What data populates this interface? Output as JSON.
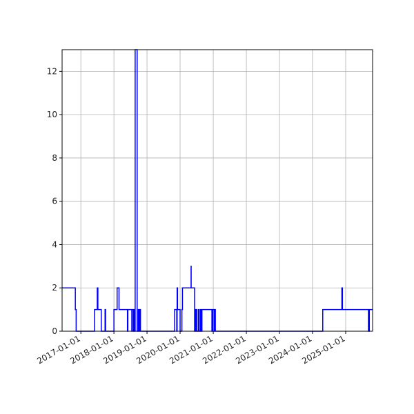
{
  "chart_data": {
    "type": "line",
    "title": "",
    "xlabel": "",
    "ylabel": "",
    "x_axis_type": "date",
    "xlim": [
      "2016-06-08",
      "2025-10-25"
    ],
    "ylim": [
      0,
      13
    ],
    "grid": true,
    "line_style": "steps",
    "colors": {
      "line": "#0000ff",
      "grid": "#b0b0b0",
      "frame": "#000000"
    },
    "y_ticks": [
      0,
      2,
      4,
      6,
      8,
      10,
      12
    ],
    "y_tick_labels": [
      "0",
      "2",
      "4",
      "6",
      "8",
      "10",
      "12"
    ],
    "x_ticks": [
      "2017-01-01",
      "2018-01-01",
      "2019-01-01",
      "2020-01-01",
      "2021-01-01",
      "2022-01-01",
      "2023-01-01",
      "2024-01-01",
      "2025-01-01"
    ],
    "x_tick_labels": [
      "2017-01-01",
      "2018-01-01",
      "2019-01-01",
      "2020-01-01",
      "2021-01-01",
      "2022-01-01",
      "2023-01-01",
      "2024-01-01",
      "2025-01-01"
    ],
    "series": [
      {
        "x": [
          "2016-06-08",
          "2016-11-01",
          "2016-11-10",
          "2017-06-01",
          "2017-07-01",
          "2017-07-08",
          "2017-08-14",
          "2017-09-25",
          "2017-10-01",
          "2018-01-01",
          "2018-02-05",
          "2018-02-26",
          "2018-05-30",
          "2018-06-04",
          "2018-07-17",
          "2018-07-21",
          "2018-08-04",
          "2018-08-07",
          "2018-08-12",
          "2018-08-17",
          "2018-08-20",
          "2018-08-23",
          "2018-09-14",
          "2018-09-27",
          "2018-10-06",
          "2018-10-11",
          "2018-10-21",
          "2018-10-31",
          "2019-11-02",
          "2019-11-25",
          "2019-11-29",
          "2019-12-04",
          "2020-01-01",
          "2020-01-21",
          "2020-01-27",
          "2020-05-01",
          "2020-05-02",
          "2020-06-09",
          "2020-06-10",
          "2020-06-14",
          "2020-06-22",
          "2020-07-04",
          "2020-07-21",
          "2020-07-30",
          "2020-08-14",
          "2020-08-20",
          "2020-08-29",
          "2020-10-06",
          "2020-12-17",
          "2020-12-28",
          "2021-01-12",
          "2021-01-18",
          "2021-01-24",
          "2024-04-23",
          "2024-11-20",
          "2024-11-26",
          "2025-09-09",
          "2025-09-19"
        ],
        "y": [
          2,
          1,
          0,
          1,
          2,
          1,
          0,
          1,
          0,
          1,
          2,
          1,
          0,
          1,
          0,
          1,
          0,
          1,
          0,
          1,
          0,
          13,
          0,
          1,
          0,
          1,
          0,
          0,
          1,
          0,
          2,
          1,
          0,
          1,
          2,
          3,
          2,
          0,
          1,
          0,
          1,
          0,
          1,
          0,
          1,
          0,
          1,
          1,
          0,
          1,
          0,
          1,
          0,
          1,
          2,
          1,
          0,
          1
        ]
      }
    ]
  }
}
